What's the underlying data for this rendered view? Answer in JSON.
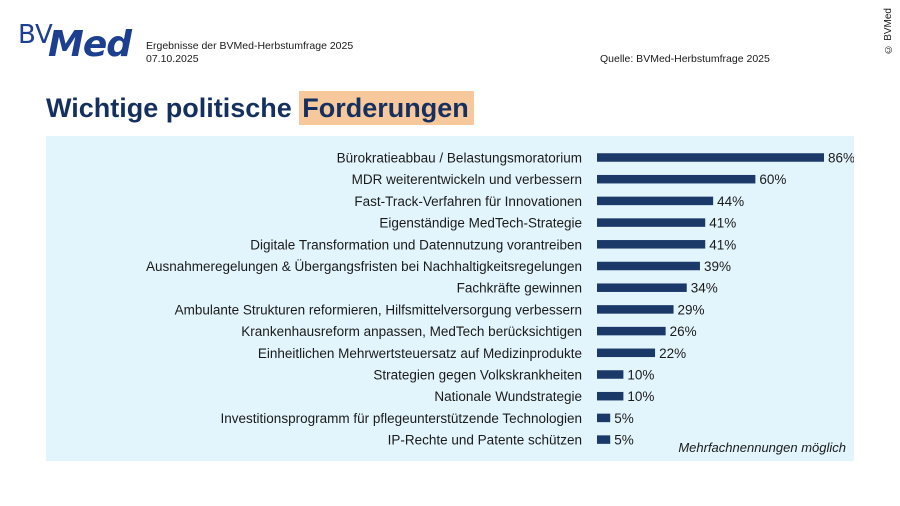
{
  "brand": {
    "bv": "BV",
    "med": "Med"
  },
  "header": {
    "subtitle_line1": "Ergebnisse der BVMed-Herbstumfrage 2025",
    "date": "07.10.2025",
    "source": "Quelle: BVMed-Herbstumfrage 2025",
    "copyright": "© BVMed"
  },
  "title": {
    "part1": "Wichtige politische ",
    "highlight": "Forderungen"
  },
  "note": "Mehrfachnennungen möglich",
  "colors": {
    "bar": "#1a3868",
    "panel": "#e3f5fc",
    "highlight": "#f7c89c"
  },
  "chart_data": {
    "type": "bar",
    "orientation": "horizontal",
    "categories": [
      "Bürokratieabbau / Belastungsmoratorium",
      "MDR weiterentwickeln und verbessern",
      "Fast-Track-Verfahren für Innovationen",
      "Eigenständige MedTech-Strategie",
      "Digitale Transformation und Datennutzung vorantreiben",
      "Ausnahmeregelungen & Übergangsfristen bei Nachhaltigkeitsregelungen",
      "Fachkräfte gewinnen",
      "Ambulante Strukturen reformieren, Hilfsmittelversorgung verbessern",
      "Krankenhausreform anpassen, MedTech berücksichtigen",
      "Einheitlichen Mehrwertsteuersatz auf Medizinprodukte",
      "Strategien gegen Volkskrankheiten",
      "Nationale Wundstrategie",
      "Investitionsprogramm für pflegeunterstützende Technologien",
      "IP-Rechte und Patente schützen"
    ],
    "values": [
      86,
      60,
      44,
      41,
      41,
      39,
      34,
      29,
      26,
      22,
      10,
      10,
      5,
      5
    ],
    "value_labels": [
      "86%",
      "60%",
      "44%",
      "41%",
      "41%",
      "39%",
      "34%",
      "29%",
      "26%",
      "22%",
      "10%",
      "10%",
      "5%",
      "5%"
    ],
    "unit": "%",
    "xlim": [
      0,
      100
    ],
    "grid": false,
    "legend": "none"
  }
}
